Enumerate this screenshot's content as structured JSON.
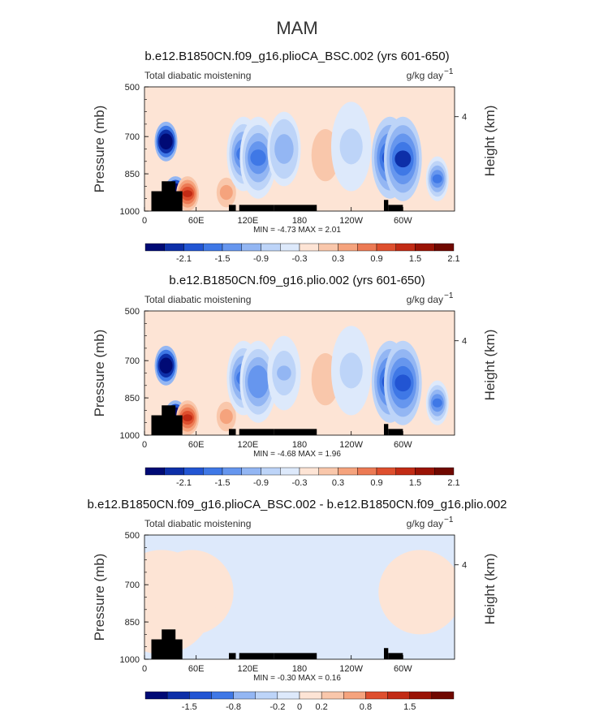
{
  "figure": {
    "suptitle": "MAM"
  },
  "chart_data": [
    {
      "type": "heatmap",
      "title": "b.e12.B1850CN.f09_g16.plioCA_BSC.002 (yrs 601-650)",
      "left_label": "Total diabatic moistening",
      "units": "g/kg day",
      "units_exp": "−1",
      "ylabel": "Pressure (mb)",
      "ylabel_right": "Height (km)",
      "x_ticks": [
        "0",
        "60E",
        "120E",
        "180",
        "120W",
        "60W"
      ],
      "x_tick_lon": [
        0,
        60,
        120,
        180,
        240,
        300
      ],
      "xlim": [
        0,
        360
      ],
      "y_ticks": [
        "500",
        "700",
        "850",
        "1000"
      ],
      "y_tick_p": [
        500,
        700,
        850,
        1000
      ],
      "ylim": [
        500,
        1000
      ],
      "right_ticks": [
        "4"
      ],
      "minmax": "MIN =   -4.73   MAX =    2.01",
      "colorbar_labels": [
        "-2.1",
        "-1.5",
        "-0.9",
        "-0.3",
        "0.3",
        "0.9",
        "1.5",
        "2.1"
      ],
      "colorbar_colors": [
        "#000a75",
        "#0d2fa8",
        "#2255d3",
        "#3f78e6",
        "#6696ee",
        "#93b6f3",
        "#bdd4f8",
        "#dde9fb",
        "#fde4d5",
        "#f9c7ab",
        "#f5a37d",
        "#ec7a54",
        "#de4f2e",
        "#c22b15",
        "#9a1305",
        "#700800"
      ],
      "features": [
        {
          "lon": 25,
          "p_top": 640,
          "p_bot": 800,
          "value": -3.5
        },
        {
          "lon": 36,
          "p_top": 860,
          "p_bot": 1000,
          "value": -4.7
        },
        {
          "lon": 50,
          "p_top": 860,
          "p_bot": 1000,
          "value": 1.8
        },
        {
          "lon": 95,
          "p_top": 850,
          "p_bot": 1000,
          "value": 1.0
        },
        {
          "lon": 115,
          "p_top": 620,
          "p_bot": 920,
          "value": -1.6
        },
        {
          "lon": 132,
          "p_top": 620,
          "p_bot": 950,
          "value": -1.4
        },
        {
          "lon": 162,
          "p_top": 600,
          "p_bot": 900,
          "value": -0.9
        },
        {
          "lon": 210,
          "p_top": 600,
          "p_bot": 950,
          "value": 0.6
        },
        {
          "lon": 240,
          "p_top": 560,
          "p_bot": 920,
          "value": -0.5
        },
        {
          "lon": 285,
          "p_top": 620,
          "p_bot": 950,
          "value": -1.8
        },
        {
          "lon": 300,
          "p_top": 620,
          "p_bot": 960,
          "value": -2.1
        },
        {
          "lon": 340,
          "p_top": 780,
          "p_bot": 960,
          "value": -1.6
        }
      ],
      "land": [
        {
          "lon0": 8,
          "lon1": 44,
          "p_top": 920
        },
        {
          "lon0": 20,
          "lon1": 36,
          "p_top": 880
        },
        {
          "lon0": 35,
          "lon1": 42,
          "p_top": 945
        },
        {
          "lon0": 98,
          "lon1": 106,
          "p_top": 975
        },
        {
          "lon0": 110,
          "lon1": 150,
          "p_top": 975
        },
        {
          "lon0": 150,
          "lon1": 200,
          "p_top": 975
        },
        {
          "lon0": 278,
          "lon1": 283,
          "p_top": 955
        },
        {
          "lon0": 283,
          "lon1": 300,
          "p_top": 975
        }
      ]
    },
    {
      "type": "heatmap",
      "title": "b.e12.B1850CN.f09_g16.plio.002 (yrs 601-650)",
      "left_label": "Total diabatic moistening",
      "units": "g/kg day",
      "units_exp": "−1",
      "ylabel": "Pressure (mb)",
      "ylabel_right": "Height (km)",
      "x_ticks": [
        "0",
        "60E",
        "120E",
        "180",
        "120W",
        "60W"
      ],
      "x_tick_lon": [
        0,
        60,
        120,
        180,
        240,
        300
      ],
      "xlim": [
        0,
        360
      ],
      "y_ticks": [
        "500",
        "700",
        "850",
        "1000"
      ],
      "y_tick_p": [
        500,
        700,
        850,
        1000
      ],
      "ylim": [
        500,
        1000
      ],
      "right_ticks": [
        "4"
      ],
      "minmax": "MIN =   -4.68   MAX =    1.96",
      "colorbar_labels": [
        "-2.1",
        "-1.5",
        "-0.9",
        "-0.3",
        "0.3",
        "0.9",
        "1.5",
        "2.1"
      ],
      "colorbar_colors": [
        "#000a75",
        "#0d2fa8",
        "#2255d3",
        "#3f78e6",
        "#6696ee",
        "#93b6f3",
        "#bdd4f8",
        "#dde9fb",
        "#fde4d5",
        "#f9c7ab",
        "#f5a37d",
        "#ec7a54",
        "#de4f2e",
        "#c22b15",
        "#9a1305",
        "#700800"
      ],
      "features": [
        {
          "lon": 25,
          "p_top": 640,
          "p_bot": 800,
          "value": -3.4
        },
        {
          "lon": 36,
          "p_top": 860,
          "p_bot": 1000,
          "value": -4.6
        },
        {
          "lon": 50,
          "p_top": 860,
          "p_bot": 1000,
          "value": 1.8
        },
        {
          "lon": 95,
          "p_top": 850,
          "p_bot": 1000,
          "value": 1.0
        },
        {
          "lon": 115,
          "p_top": 620,
          "p_bot": 920,
          "value": -1.5
        },
        {
          "lon": 132,
          "p_top": 620,
          "p_bot": 950,
          "value": -1.3
        },
        {
          "lon": 162,
          "p_top": 600,
          "p_bot": 900,
          "value": -0.8
        },
        {
          "lon": 210,
          "p_top": 600,
          "p_bot": 950,
          "value": 0.6
        },
        {
          "lon": 240,
          "p_top": 560,
          "p_bot": 920,
          "value": -0.5
        },
        {
          "lon": 285,
          "p_top": 620,
          "p_bot": 950,
          "value": -1.7
        },
        {
          "lon": 300,
          "p_top": 620,
          "p_bot": 960,
          "value": -2.0
        },
        {
          "lon": 340,
          "p_top": 780,
          "p_bot": 960,
          "value": -1.5
        }
      ],
      "land": [
        {
          "lon0": 8,
          "lon1": 44,
          "p_top": 920
        },
        {
          "lon0": 20,
          "lon1": 36,
          "p_top": 880
        },
        {
          "lon0": 35,
          "lon1": 42,
          "p_top": 945
        },
        {
          "lon0": 98,
          "lon1": 106,
          "p_top": 975
        },
        {
          "lon0": 110,
          "lon1": 150,
          "p_top": 975
        },
        {
          "lon0": 150,
          "lon1": 200,
          "p_top": 975
        },
        {
          "lon0": 278,
          "lon1": 283,
          "p_top": 955
        },
        {
          "lon0": 283,
          "lon1": 300,
          "p_top": 975
        }
      ]
    },
    {
      "type": "heatmap",
      "title": "b.e12.B1850CN.f09_g16.plioCA_BSC.002 - b.e12.B1850CN.f09_g16.plio.002",
      "left_label": "Total diabatic moistening",
      "units": "g/kg day",
      "units_exp": "−1",
      "ylabel": "Pressure (mb)",
      "ylabel_right": "Height (km)",
      "x_ticks": [
        "0",
        "60E",
        "120E",
        "180",
        "120W",
        "60W"
      ],
      "x_tick_lon": [
        0,
        60,
        120,
        180,
        240,
        300
      ],
      "xlim": [
        0,
        360
      ],
      "y_ticks": [
        "500",
        "700",
        "850",
        "1000"
      ],
      "y_tick_p": [
        500,
        700,
        850,
        1000
      ],
      "ylim": [
        500,
        1000
      ],
      "right_ticks": [
        "4"
      ],
      "minmax": "MIN =   -0.30   MAX =    0.16",
      "colorbar_labels": [
        "-1.5",
        "-0.8",
        "-0.2",
        "0",
        "0.2",
        "0.8",
        "1.5"
      ],
      "colorbar_colors": [
        "#000a75",
        "#0d2fa8",
        "#2255d3",
        "#3f78e6",
        "#93b6f3",
        "#bdd4f8",
        "#dde9fb",
        "#fde4d5",
        "#f9c7ab",
        "#f5a37d",
        "#de4f2e",
        "#c22b15",
        "#9a1305",
        "#700800"
      ],
      "features": [
        {
          "lon": 20,
          "p_top": 560,
          "p_bot": 980,
          "value": 0.05
        },
        {
          "lon": 55,
          "p_top": 560,
          "p_bot": 900,
          "value": 0.05
        },
        {
          "lon": 175,
          "p_top": 880,
          "p_bot": 960,
          "value": -0.2
        },
        {
          "lon": 320,
          "p_top": 560,
          "p_bot": 900,
          "value": 0.05
        }
      ],
      "land": [
        {
          "lon0": 8,
          "lon1": 44,
          "p_top": 920
        },
        {
          "lon0": 20,
          "lon1": 36,
          "p_top": 880
        },
        {
          "lon0": 35,
          "lon1": 42,
          "p_top": 945
        },
        {
          "lon0": 98,
          "lon1": 106,
          "p_top": 975
        },
        {
          "lon0": 110,
          "lon1": 150,
          "p_top": 975
        },
        {
          "lon0": 150,
          "lon1": 200,
          "p_top": 975
        },
        {
          "lon0": 278,
          "lon1": 283,
          "p_top": 955
        },
        {
          "lon0": 283,
          "lon1": 300,
          "p_top": 975
        }
      ]
    }
  ]
}
